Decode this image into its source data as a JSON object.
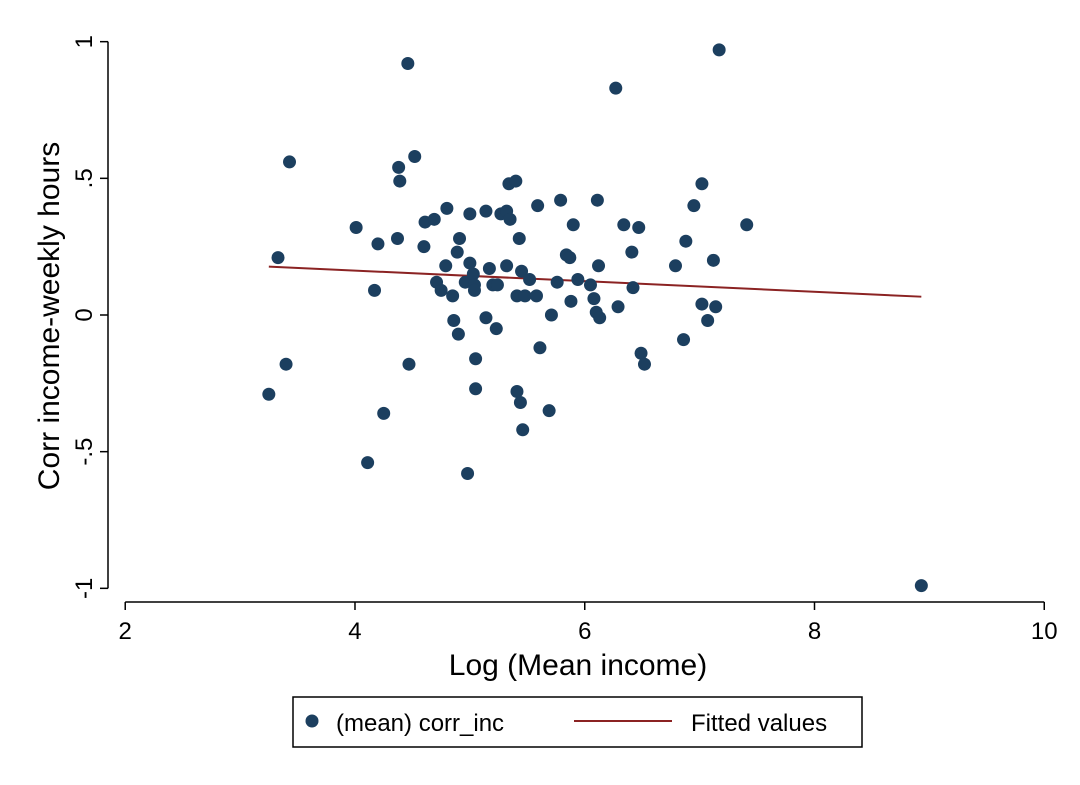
{
  "chart_data": {
    "type": "scatter",
    "xlabel": "Log (Mean income)",
    "ylabel": "Corr income-weekly hours",
    "xlim": [
      1.85,
      10.05
    ],
    "ylim": [
      -1.05,
      1.05
    ],
    "xticks": [
      "2",
      "4",
      "6",
      "8",
      "10"
    ],
    "xtick_values": [
      2,
      4,
      6,
      8,
      10
    ],
    "yticks": [
      "-1",
      "-.5",
      "0",
      ".5",
      "1"
    ],
    "ytick_values": [
      -1,
      -0.5,
      0,
      0.5,
      1
    ],
    "grid": false,
    "legend_position": "bottom",
    "colors": {
      "points": "#1c3f5f",
      "fit": "#8b2323",
      "axis": "#000000"
    },
    "series": [
      {
        "name": "(mean) corr_inc",
        "kind": "scatter",
        "points": [
          [
            3.25,
            -0.29
          ],
          [
            3.33,
            0.21
          ],
          [
            3.4,
            -0.18
          ],
          [
            3.43,
            0.56
          ],
          [
            4.01,
            0.32
          ],
          [
            4.11,
            -0.54
          ],
          [
            4.17,
            0.09
          ],
          [
            4.2,
            0.26
          ],
          [
            4.25,
            -0.36
          ],
          [
            4.37,
            0.28
          ],
          [
            4.38,
            0.54
          ],
          [
            4.39,
            0.49
          ],
          [
            4.46,
            0.92
          ],
          [
            4.47,
            -0.18
          ],
          [
            4.52,
            0.58
          ],
          [
            4.6,
            0.25
          ],
          [
            4.61,
            0.34
          ],
          [
            4.69,
            0.35
          ],
          [
            4.71,
            0.12
          ],
          [
            4.75,
            0.09
          ],
          [
            4.79,
            0.18
          ],
          [
            4.8,
            0.39
          ],
          [
            4.85,
            0.07
          ],
          [
            4.86,
            -0.02
          ],
          [
            4.89,
            0.23
          ],
          [
            4.9,
            -0.07
          ],
          [
            4.91,
            0.28
          ],
          [
            4.96,
            0.12
          ],
          [
            4.98,
            -0.58
          ],
          [
            5.0,
            0.19
          ],
          [
            5.0,
            0.37
          ],
          [
            5.03,
            0.15
          ],
          [
            5.04,
            0.11
          ],
          [
            5.04,
            0.09
          ],
          [
            5.05,
            -0.16
          ],
          [
            5.05,
            -0.27
          ],
          [
            5.14,
            -0.01
          ],
          [
            5.14,
            0.38
          ],
          [
            5.17,
            0.17
          ],
          [
            5.2,
            0.11
          ],
          [
            5.23,
            -0.05
          ],
          [
            5.24,
            0.11
          ],
          [
            5.27,
            0.37
          ],
          [
            5.32,
            0.38
          ],
          [
            5.32,
            0.18
          ],
          [
            5.34,
            0.48
          ],
          [
            5.35,
            0.35
          ],
          [
            5.4,
            0.49
          ],
          [
            5.41,
            0.07
          ],
          [
            5.41,
            -0.28
          ],
          [
            5.43,
            0.28
          ],
          [
            5.44,
            -0.32
          ],
          [
            5.45,
            0.16
          ],
          [
            5.46,
            -0.42
          ],
          [
            5.48,
            0.07
          ],
          [
            5.52,
            0.13
          ],
          [
            5.58,
            0.07
          ],
          [
            5.59,
            0.4
          ],
          [
            5.61,
            -0.12
          ],
          [
            5.69,
            -0.35
          ],
          [
            5.71,
            0.0
          ],
          [
            5.76,
            0.12
          ],
          [
            5.79,
            0.42
          ],
          [
            5.84,
            0.22
          ],
          [
            5.87,
            0.21
          ],
          [
            5.88,
            0.05
          ],
          [
            5.9,
            0.33
          ],
          [
            5.94,
            0.13
          ],
          [
            6.05,
            0.11
          ],
          [
            6.08,
            0.06
          ],
          [
            6.1,
            0.01
          ],
          [
            6.11,
            0.42
          ],
          [
            6.12,
            0.18
          ],
          [
            6.13,
            -0.01
          ],
          [
            6.27,
            0.83
          ],
          [
            6.29,
            0.03
          ],
          [
            6.34,
            0.33
          ],
          [
            6.41,
            0.23
          ],
          [
            6.42,
            0.1
          ],
          [
            6.47,
            0.32
          ],
          [
            6.49,
            -0.14
          ],
          [
            6.52,
            -0.18
          ],
          [
            6.79,
            0.18
          ],
          [
            6.86,
            -0.09
          ],
          [
            6.88,
            0.27
          ],
          [
            6.95,
            0.4
          ],
          [
            7.02,
            0.48
          ],
          [
            7.02,
            0.04
          ],
          [
            7.07,
            -0.02
          ],
          [
            7.12,
            0.2
          ],
          [
            7.14,
            0.03
          ],
          [
            7.17,
            0.97
          ],
          [
            7.41,
            0.33
          ],
          [
            8.93,
            -0.99
          ]
        ]
      },
      {
        "name": "Fitted values",
        "kind": "line",
        "points": [
          [
            3.25,
            0.177
          ],
          [
            8.93,
            0.067
          ]
        ]
      }
    ]
  }
}
